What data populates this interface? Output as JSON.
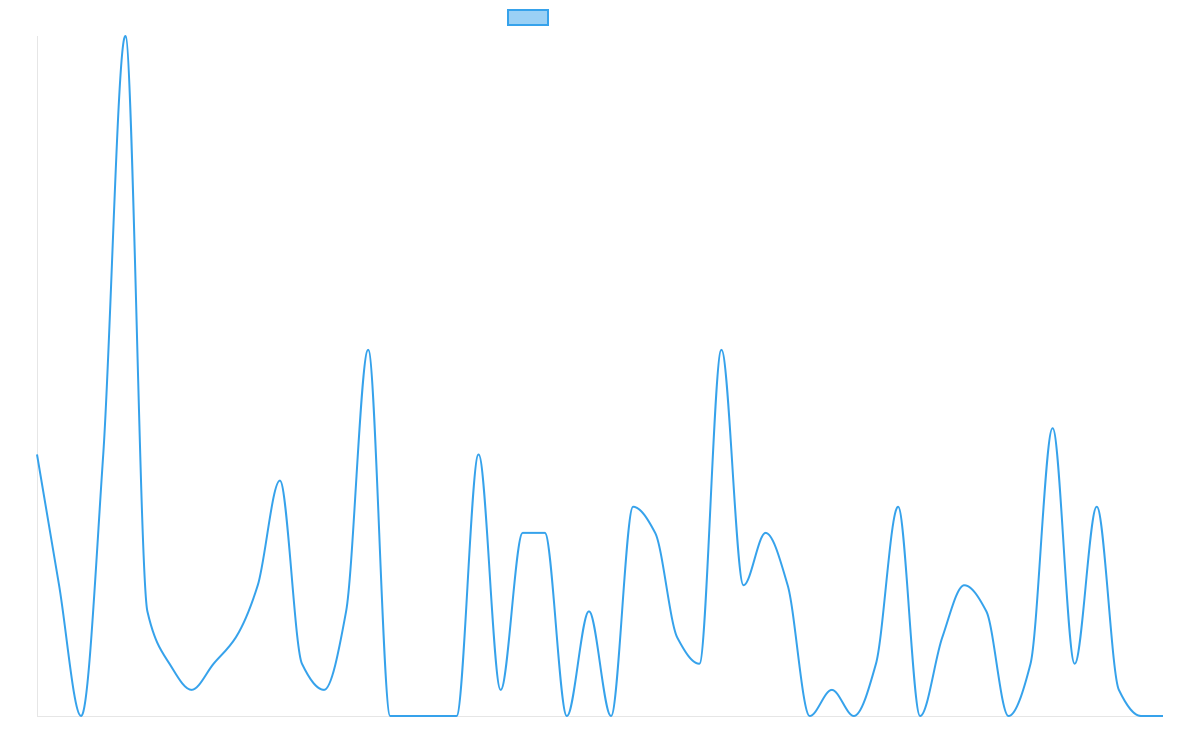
{
  "chart_data": {
    "type": "line",
    "title": "",
    "xlabel": "",
    "ylabel": "",
    "ylim": [
      0,
      26
    ],
    "grid": false,
    "legend": "top-center",
    "x": [
      0,
      1,
      2,
      3,
      4,
      5,
      6,
      7,
      8,
      9,
      10,
      11,
      12,
      13,
      14,
      15,
      16,
      17,
      18,
      19,
      20,
      21,
      22,
      23,
      24,
      25,
      26,
      27,
      28,
      29,
      30,
      31,
      32,
      33,
      34,
      35,
      36,
      37,
      38,
      39,
      40,
      41,
      42,
      43,
      44,
      45,
      46,
      47,
      48,
      49,
      50,
      51
    ],
    "series": [
      {
        "name": "",
        "color": "#36a2eb",
        "fill": "#9ad0f5",
        "values": [
          10,
          5,
          0,
          10,
          26,
          4,
          2,
          1,
          2,
          3,
          5,
          9,
          2,
          1,
          4,
          14,
          0,
          0,
          0,
          0,
          10,
          1,
          7,
          7,
          0,
          4,
          0,
          8,
          7,
          3,
          2,
          14,
          5,
          7,
          5,
          0,
          1,
          0,
          2,
          8,
          0,
          3,
          5,
          4,
          0,
          2,
          11,
          2,
          8,
          1,
          0,
          0
        ]
      }
    ]
  }
}
